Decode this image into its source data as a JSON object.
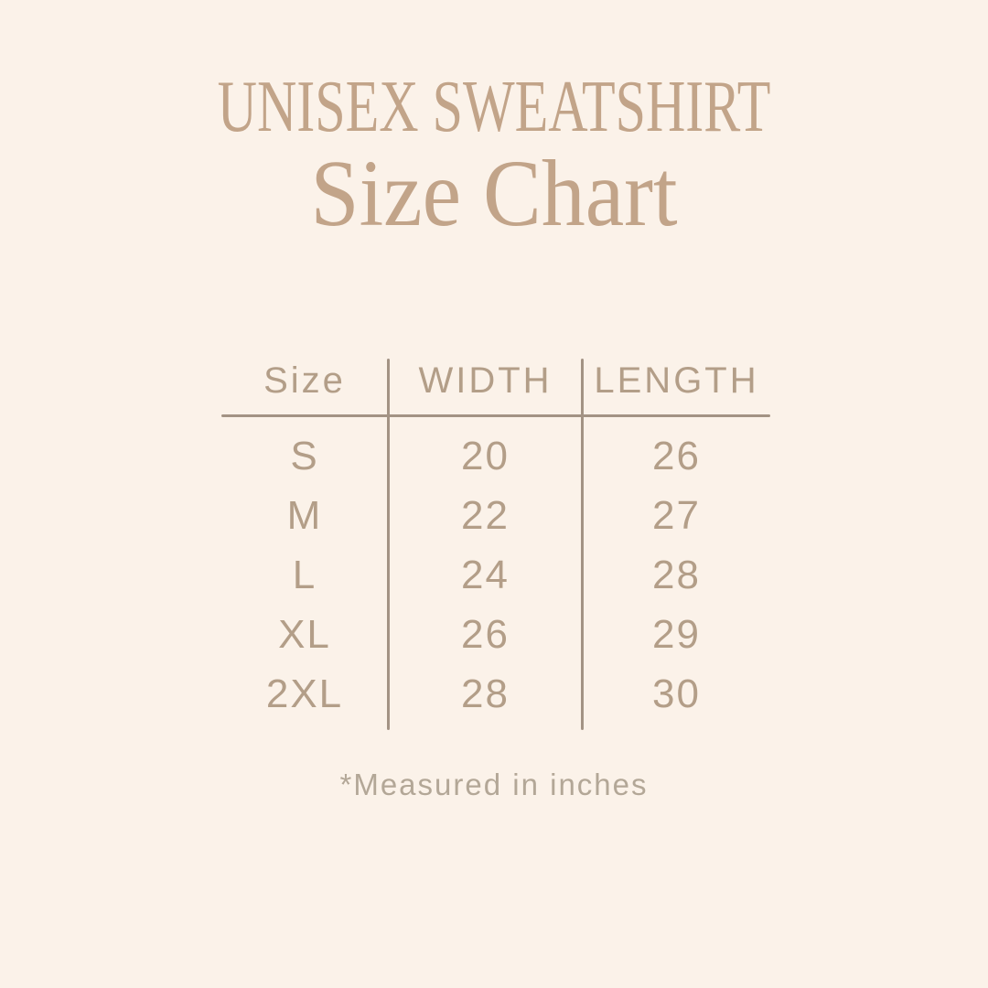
{
  "page": {
    "background_color": "#fbf2e9",
    "accent_color": "#c2a489",
    "table_text_color": "#b39e88",
    "line_color": "#a39384",
    "footnote_color": "#b3a797"
  },
  "header": {
    "title": "UNISEX SWEATSHIRT",
    "subtitle": "Size Chart"
  },
  "table": {
    "columns": [
      "Size",
      "WIDTH",
      "LENGTH"
    ],
    "rows": [
      {
        "size": "S",
        "width": "20",
        "length": "26"
      },
      {
        "size": "M",
        "width": "22",
        "length": "27"
      },
      {
        "size": "L",
        "width": "24",
        "length": "28"
      },
      {
        "size": "XL",
        "width": "26",
        "length": "29"
      },
      {
        "size": "2XL",
        "width": "28",
        "length": "30"
      }
    ]
  },
  "footer": {
    "note": "*Measured in inches"
  },
  "chart_data": {
    "type": "table",
    "title": "UNISEX SWEATSHIRT Size Chart",
    "columns": [
      "Size",
      "WIDTH",
      "LENGTH"
    ],
    "rows": [
      [
        "S",
        20,
        26
      ],
      [
        "M",
        22,
        27
      ],
      [
        "L",
        24,
        28
      ],
      [
        "XL",
        26,
        29
      ],
      [
        "2XL",
        28,
        30
      ]
    ],
    "units": "inches",
    "footnote": "*Measured in inches"
  }
}
